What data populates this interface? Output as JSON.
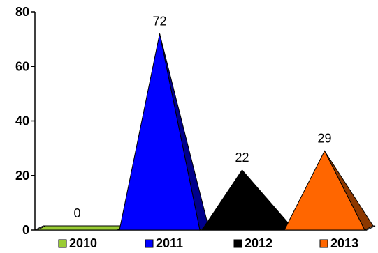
{
  "chart_data": {
    "type": "bar",
    "shape": "pyramid",
    "categories": [
      "2010",
      "2011",
      "2012",
      "2013"
    ],
    "series": [
      {
        "values": [
          0,
          72,
          22,
          29
        ],
        "colors": [
          "#99cc33",
          "#0000ff",
          "#000000",
          "#ff6600"
        ]
      }
    ],
    "data_labels": [
      "0",
      "72",
      "22",
      "29"
    ],
    "ylim": [
      0,
      80
    ],
    "yticks": [
      0,
      20,
      40,
      60,
      80
    ],
    "ytick_labels": [
      "0",
      "20",
      "40",
      "60",
      "80"
    ],
    "grid": false,
    "legend": {
      "position": "bottom",
      "entries": [
        {
          "label": "2010",
          "color": "#99cc33"
        },
        {
          "label": "2011",
          "color": "#0000ff"
        },
        {
          "label": "2012",
          "color": "#000000"
        },
        {
          "label": "2013",
          "color": "#ff6600"
        }
      ]
    }
  }
}
